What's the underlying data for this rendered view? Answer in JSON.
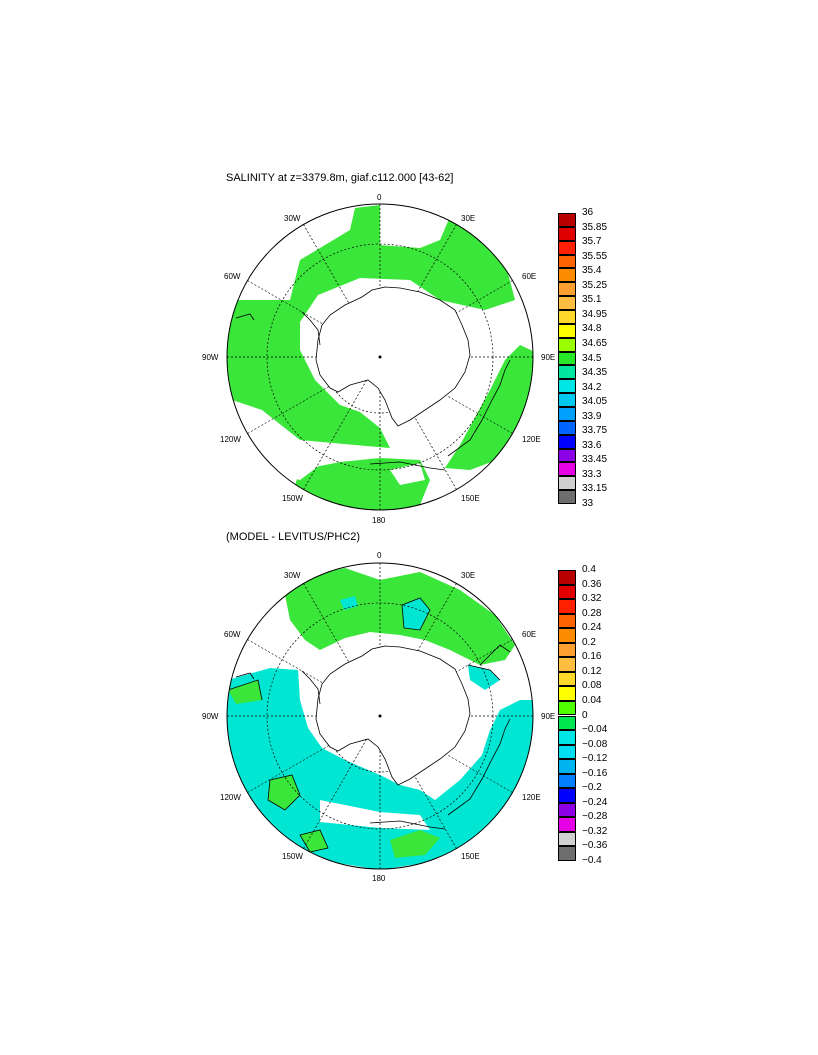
{
  "maps": [
    {
      "title": "SALINITY at z=3379.8m, giaf.c112.000 [43-62]",
      "lon_labels": [
        "0",
        "30E",
        "60E",
        "90E",
        "120E",
        "150E",
        "180",
        "150W",
        "120W",
        "90W",
        "60W",
        "30W"
      ],
      "colorbar_ticks": [
        "36",
        "35.85",
        "35.7",
        "35.55",
        "35.4",
        "35.25",
        "35.1",
        "34.95",
        "34.8",
        "34.65",
        "34.5",
        "34.35",
        "34.2",
        "34.05",
        "33.9",
        "33.75",
        "33.6",
        "33.45",
        "33.3",
        "33.15",
        "33"
      ],
      "colorbar_colors": [
        "#b80000",
        "#e00000",
        "#ff2000",
        "#ff6400",
        "#ff8c00",
        "#ffa030",
        "#ffbe40",
        "#ffd82c",
        "#ffff00",
        "#9cff00",
        "#28e628",
        "#00e6a0",
        "#00e6e6",
        "#00c8f0",
        "#00a0ff",
        "#0064ff",
        "#0000ff",
        "#8c00e6",
        "#e600e6",
        "#d0d0d0",
        "#6e6e6e"
      ],
      "primary_color": "#39e639"
    },
    {
      "title": "(MODEL - LEVITUS/PHC2)",
      "lon_labels": [
        "0",
        "30E",
        "60E",
        "90E",
        "120E",
        "150E",
        "180",
        "150W",
        "120W",
        "90W",
        "60W",
        "30W"
      ],
      "colorbar_ticks": [
        "0.4",
        "0.36",
        "0.32",
        "0.28",
        "0.24",
        "0.2",
        "0.16",
        "0.12",
        "0.08",
        "0.04",
        "0",
        "−0.04",
        "−0.08",
        "−0.12",
        "−0.16",
        "−0.2",
        "−0.24",
        "−0.28",
        "−0.32",
        "−0.36",
        "−0.4"
      ],
      "colorbar_colors": [
        "#b80000",
        "#e00000",
        "#ff2000",
        "#ff6400",
        "#ff8c00",
        "#ffa030",
        "#ffbe40",
        "#ffd82c",
        "#ffff00",
        "#50ff00",
        "#00e650",
        "#00e6e6",
        "#00dcf0",
        "#00b4f0",
        "#0080ff",
        "#0000ff",
        "#8c00e6",
        "#e600e6",
        "#d0d0d0",
        "#6e6e6e"
      ],
      "primary_color": "#00e6d2",
      "secondary_color": "#39e639"
    }
  ]
}
